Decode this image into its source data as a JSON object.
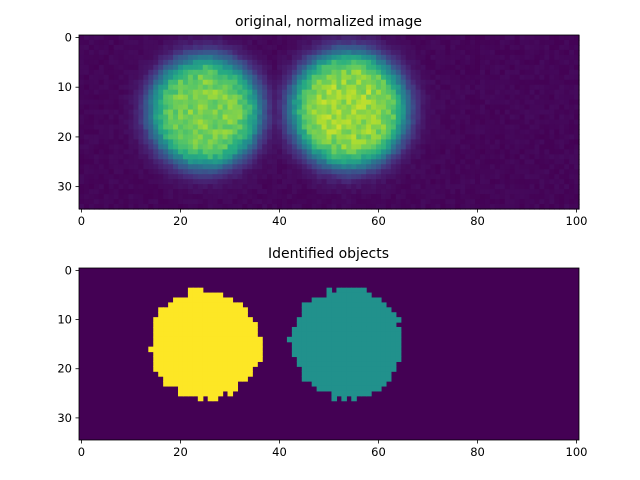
{
  "chart_data": [
    {
      "type": "heatmap",
      "title": "original, normalized image",
      "xlabel": "",
      "ylabel": "",
      "image_shape": [
        35,
        101
      ],
      "xlim": [
        -0.5,
        100.5
      ],
      "ylim": [
        34.5,
        -0.5
      ],
      "xticks": [
        0,
        20,
        40,
        60,
        80,
        100
      ],
      "yticks": [
        0,
        10,
        20,
        30
      ],
      "colormap": "viridis",
      "background_value": 0.0,
      "blobs": [
        {
          "center_x": 25,
          "center_y": 15,
          "radius": 11,
          "peak": 0.85
        },
        {
          "center_x": 54,
          "center_y": 14.5,
          "radius": 11.5,
          "peak": 0.9
        }
      ],
      "noise": 0.08,
      "grid": false
    },
    {
      "type": "heatmap",
      "title": "Identified objects",
      "xlabel": "",
      "ylabel": "",
      "image_shape": [
        35,
        101
      ],
      "xlim": [
        -0.5,
        100.5
      ],
      "ylim": [
        34.5,
        -0.5
      ],
      "xticks": [
        0,
        20,
        40,
        60,
        80,
        100
      ],
      "yticks": [
        0,
        10,
        20,
        30
      ],
      "colormap": "viridis",
      "objects": [
        {
          "label": 1,
          "center_x": 25,
          "center_y": 15,
          "radius": 11,
          "color": "#fde725"
        },
        {
          "label": 2,
          "center_x": 53.5,
          "center_y": 14.8,
          "radius": 11.3,
          "color": "#21918c"
        }
      ],
      "background_color": "#440154",
      "grid": false
    }
  ]
}
